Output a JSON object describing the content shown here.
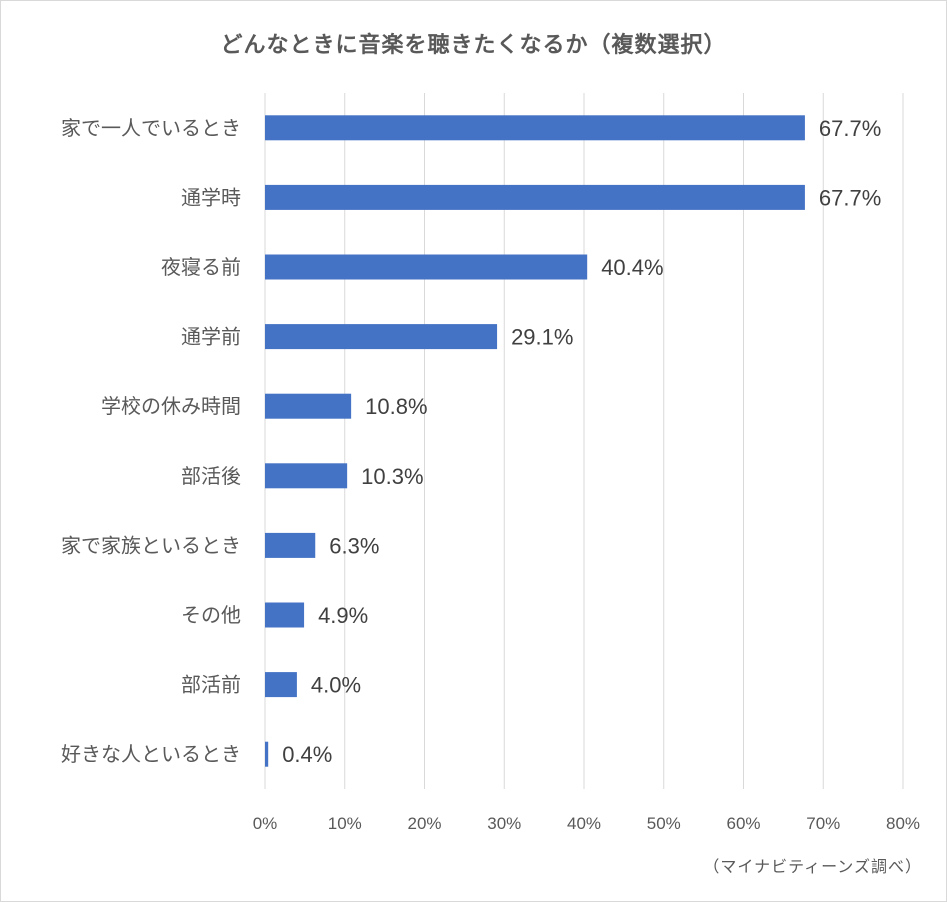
{
  "chart_data": {
    "type": "bar",
    "orientation": "horizontal",
    "title": "どんなときに音楽を聴きたくなるか（複数選択）",
    "categories": [
      "家で一人でいるとき",
      "通学時",
      "夜寝る前",
      "通学前",
      "学校の休み時間",
      "部活後",
      "家で家族といるとき",
      "その他",
      "部活前",
      "好きな人といるとき"
    ],
    "values": [
      67.7,
      67.7,
      40.4,
      29.1,
      10.8,
      10.3,
      6.3,
      4.9,
      4.0,
      0.4
    ],
    "value_labels": [
      "67.7%",
      "67.7%",
      "40.4%",
      "29.1%",
      "10.8%",
      "10.3%",
      "6.3%",
      "4.9%",
      "4.0%",
      "0.4%"
    ],
    "xlim": [
      0,
      80
    ],
    "x_ticks": [
      0,
      10,
      20,
      30,
      40,
      50,
      60,
      70,
      80
    ],
    "x_tick_labels": [
      "0%",
      "10%",
      "20%",
      "30%",
      "40%",
      "50%",
      "60%",
      "70%",
      "80%"
    ],
    "xlabel": "",
    "ylabel": "",
    "grid": true,
    "legend": "none",
    "bar_color": "#4472c4",
    "grid_color": "#d9d9d9"
  },
  "source_note": "（マイナビティーンズ調べ）"
}
